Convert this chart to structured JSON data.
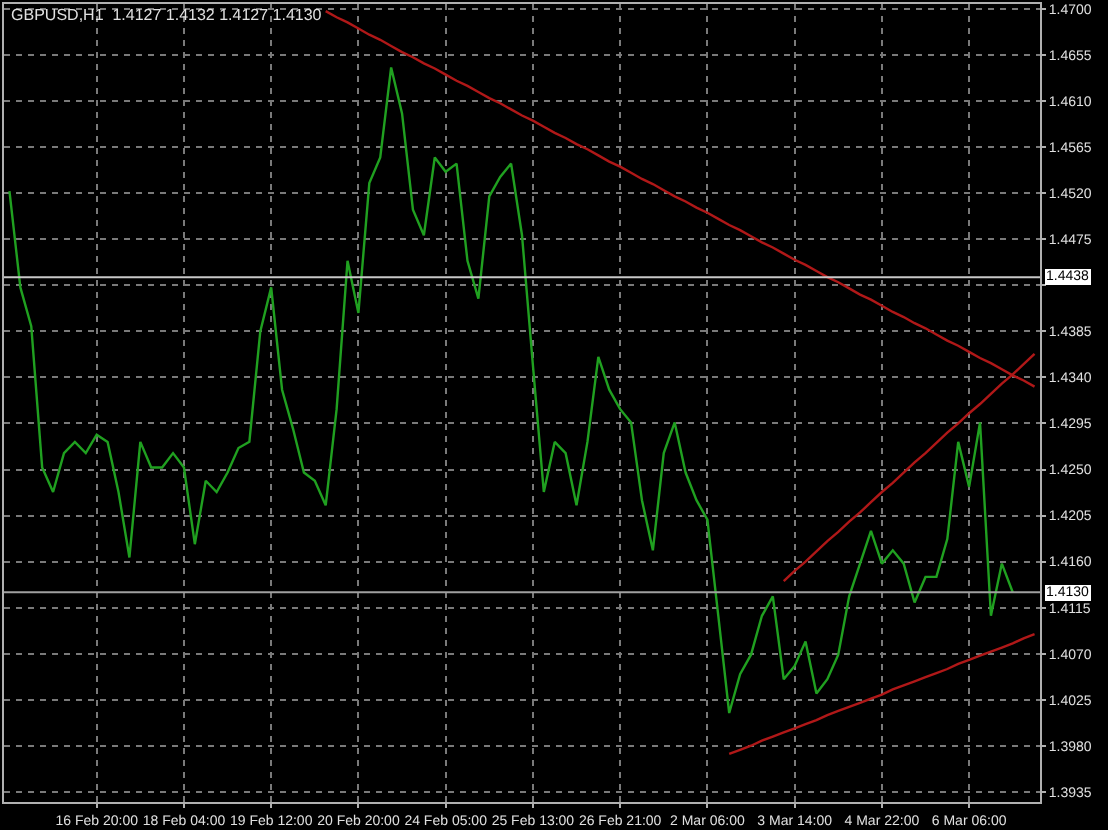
{
  "chart_data": {
    "type": "line",
    "title": "GBPUSD,H1  1.4127 1.4132 1.4127 1.4130",
    "categories": [
      null,
      null,
      null,
      null,
      null,
      null,
      null,
      null,
      "16 Feb 20:00",
      null,
      null,
      null,
      null,
      null,
      null,
      null,
      "18 Feb 04:00",
      null,
      null,
      null,
      null,
      null,
      null,
      null,
      "19 Feb 12:00",
      null,
      null,
      null,
      null,
      null,
      null,
      null,
      "20 Feb 20:00",
      null,
      null,
      null,
      null,
      null,
      null,
      null,
      "24 Feb 05:00",
      null,
      null,
      null,
      null,
      null,
      null,
      null,
      "25 Feb 13:00",
      null,
      null,
      null,
      null,
      null,
      null,
      null,
      "26 Feb 21:00",
      null,
      null,
      null,
      null,
      null,
      null,
      null,
      "2 Mar 06:00",
      null,
      null,
      null,
      null,
      null,
      null,
      null,
      "3 Mar 14:00",
      null,
      null,
      null,
      null,
      null,
      null,
      null,
      "4 Mar 22:00",
      null,
      null,
      null,
      null,
      null,
      null,
      null,
      "6 Mar 06:00",
      null,
      null,
      null,
      null,
      null,
      null
    ],
    "series": [
      {
        "color": "#20a020",
        "values": [
          1.4522,
          1.4428,
          1.439,
          1.4252,
          1.4228,
          1.4266,
          1.4277,
          1.4266,
          1.4284,
          1.4277,
          1.4228,
          1.4164,
          1.4277,
          1.4252,
          1.4252,
          1.4266,
          1.4252,
          1.4177,
          1.4239,
          1.4228,
          1.4247,
          1.4271,
          1.4277,
          1.4385,
          1.4428,
          1.4328,
          1.429,
          1.4247,
          1.4239,
          1.4215,
          1.4309,
          1.4454,
          1.4403,
          1.453,
          1.4555,
          1.4643,
          1.4598,
          1.4504,
          1.4479,
          1.4555,
          1.4541,
          1.4549,
          1.4454,
          1.4417,
          1.4517,
          1.4536,
          1.4549,
          1.4479,
          1.4352,
          1.4228,
          1.4277,
          1.4266,
          1.4215,
          1.4277,
          1.436,
          1.4328,
          1.4309,
          1.4296,
          1.422,
          1.4171,
          1.4266,
          1.4296,
          1.4247,
          1.422,
          1.4201,
          1.4107,
          1.4012,
          1.405,
          1.4069,
          1.4107,
          1.4126,
          1.4045,
          1.4058,
          1.4082,
          1.4031,
          1.4045,
          1.4069,
          1.4126,
          1.4158,
          1.419,
          1.4158,
          1.4171,
          1.4158,
          1.412,
          1.4145,
          1.4145,
          1.4182,
          1.4277,
          1.4233,
          1.4296,
          1.4107,
          1.4158,
          1.413,
          null,
          null
        ]
      },
      {
        "type": "line",
        "color": "#b01818",
        "values": [
          null,
          null,
          null,
          null,
          null,
          null,
          null,
          null,
          null,
          null,
          null,
          null,
          null,
          null,
          null,
          null,
          null,
          null,
          null,
          null,
          null,
          null,
          null,
          null,
          null,
          null,
          null,
          null,
          null,
          1.4698,
          1.4692,
          1.4687,
          1.4681,
          1.4675,
          1.467,
          1.4664,
          1.4658,
          1.4653,
          1.4647,
          1.4642,
          1.4636,
          1.463,
          1.4625,
          1.4619,
          1.4613,
          1.4608,
          1.4602,
          1.4596,
          1.4591,
          1.4585,
          1.4579,
          1.4574,
          1.4568,
          1.4563,
          1.4557,
          1.4551,
          1.4546,
          1.454,
          1.4534,
          1.4529,
          1.4523,
          1.4517,
          1.4512,
          1.4506,
          1.4501,
          1.4495,
          1.4489,
          1.4484,
          1.4478,
          1.4472,
          1.4467,
          1.4461,
          1.4455,
          1.445,
          1.4444,
          1.4438,
          1.4433,
          1.4427,
          1.4421,
          1.4416,
          1.441,
          1.4404,
          1.4399,
          1.4393,
          1.4388,
          1.4382,
          1.4376,
          1.4371,
          1.4365,
          1.4359,
          1.4354,
          1.4348,
          1.4342,
          1.4337,
          1.4331
        ]
      },
      {
        "type": "line",
        "color": "#b01818",
        "values": [
          null,
          null,
          null,
          null,
          null,
          null,
          null,
          null,
          null,
          null,
          null,
          null,
          null,
          null,
          null,
          null,
          null,
          null,
          null,
          null,
          null,
          null,
          null,
          null,
          null,
          null,
          null,
          null,
          null,
          null,
          null,
          null,
          null,
          null,
          null,
          null,
          null,
          null,
          null,
          null,
          null,
          null,
          null,
          null,
          null,
          null,
          null,
          null,
          null,
          null,
          null,
          null,
          null,
          null,
          null,
          null,
          null,
          null,
          null,
          null,
          null,
          null,
          null,
          null,
          null,
          null,
          null,
          null,
          null,
          null,
          null,
          1.4141,
          1.4151,
          1.416,
          1.417,
          1.418,
          1.4189,
          1.4199,
          1.4208,
          1.4218,
          1.4228,
          1.4237,
          1.4247,
          1.4257,
          1.4266,
          1.4276,
          1.4286,
          1.4295,
          1.4305,
          1.4314,
          1.4324,
          1.4334,
          1.4343,
          1.4353,
          1.4363
        ]
      },
      {
        "type": "line",
        "color": "#b01818",
        "values": [
          null,
          null,
          null,
          null,
          null,
          null,
          null,
          null,
          null,
          null,
          null,
          null,
          null,
          null,
          null,
          null,
          null,
          null,
          null,
          null,
          null,
          null,
          null,
          null,
          null,
          null,
          null,
          null,
          null,
          null,
          null,
          null,
          null,
          null,
          null,
          null,
          null,
          null,
          null,
          null,
          null,
          null,
          null,
          null,
          null,
          null,
          null,
          null,
          null,
          null,
          null,
          null,
          null,
          null,
          null,
          null,
          null,
          null,
          null,
          null,
          null,
          null,
          null,
          null,
          null,
          null,
          1.3972,
          1.3976,
          1.398,
          1.3985,
          1.3989,
          1.3993,
          1.3997,
          1.4001,
          1.4005,
          1.401,
          1.4014,
          1.4018,
          1.4022,
          1.4026,
          1.403,
          1.4035,
          1.4039,
          1.4043,
          1.4047,
          1.4051,
          1.4055,
          1.406,
          1.4064,
          1.4068,
          1.4072,
          1.4076,
          1.408,
          1.4085,
          1.4089
        ]
      }
    ],
    "ylim": [
      1.3925,
      1.4705
    ],
    "yticks": [
      {
        "value": 1.3935,
        "label": "1.3935"
      },
      {
        "value": 1.398,
        "label": "1.3980"
      },
      {
        "value": 1.4025,
        "label": "1.4025"
      },
      {
        "value": 1.407,
        "label": "1.4070"
      },
      {
        "value": 1.4115,
        "label": "1.4115"
      },
      {
        "value": 1.416,
        "label": "1.4160"
      },
      {
        "value": 1.4205,
        "label": "1.4205"
      },
      {
        "value": 1.425,
        "label": "1.4250"
      },
      {
        "value": 1.4295,
        "label": "1.4295"
      },
      {
        "value": 1.434,
        "label": "1.4340"
      },
      {
        "value": 1.4385,
        "label": "1.4385"
      },
      {
        "value": 1.443,
        "label": null
      },
      {
        "value": 1.4475,
        "label": "1.4475"
      },
      {
        "value": 1.452,
        "label": "1.4520"
      },
      {
        "value": 1.4565,
        "label": "1.4565"
      },
      {
        "value": 1.461,
        "label": "1.4610"
      },
      {
        "value": 1.4655,
        "label": "1.4655"
      },
      {
        "value": 1.47,
        "label": "1.4700"
      }
    ],
    "ref_lines": [
      {
        "axis": "y",
        "value": 1.4438,
        "label": "1.4438",
        "color": "#c8c8c8"
      },
      {
        "axis": "y",
        "value": 1.413,
        "label": "1.4130",
        "color": "#a0a0a0"
      }
    ],
    "grid": true,
    "marker": "none",
    "line_style": "solid"
  }
}
